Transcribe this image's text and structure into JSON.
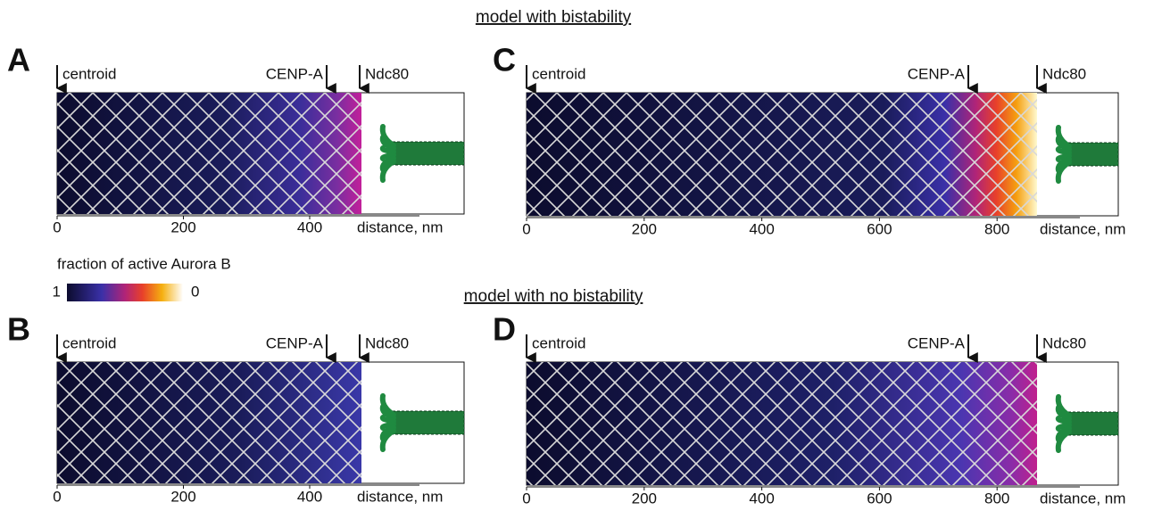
{
  "headings": [
    "model with bistability",
    "model with no bistability"
  ],
  "colorbar": {
    "title": "fraction of active Aurora B",
    "max_label": 1,
    "min_label": 0
  },
  "panels": [
    {
      "label": "A",
      "markers": [
        "centroid",
        "CENP-A",
        "Ndc80"
      ],
      "ticks": [
        0,
        200,
        400
      ],
      "axis_label": "distance, nm"
    },
    {
      "label": "C",
      "markers": [
        "centroid",
        "CENP-A",
        "Ndc80"
      ],
      "ticks": [
        0,
        200,
        400,
        600,
        800
      ],
      "axis_label": "distance, nm"
    },
    {
      "label": "B",
      "markers": [
        "centroid",
        "CENP-A",
        "Ndc80"
      ],
      "ticks": [
        0,
        200,
        400
      ],
      "axis_label": "distance, nm"
    },
    {
      "label": "D",
      "markers": [
        "centroid",
        "CENP-A",
        "Ndc80"
      ],
      "ticks": [
        0,
        200,
        400,
        600,
        800
      ],
      "axis_label": "distance, nm"
    }
  ]
}
